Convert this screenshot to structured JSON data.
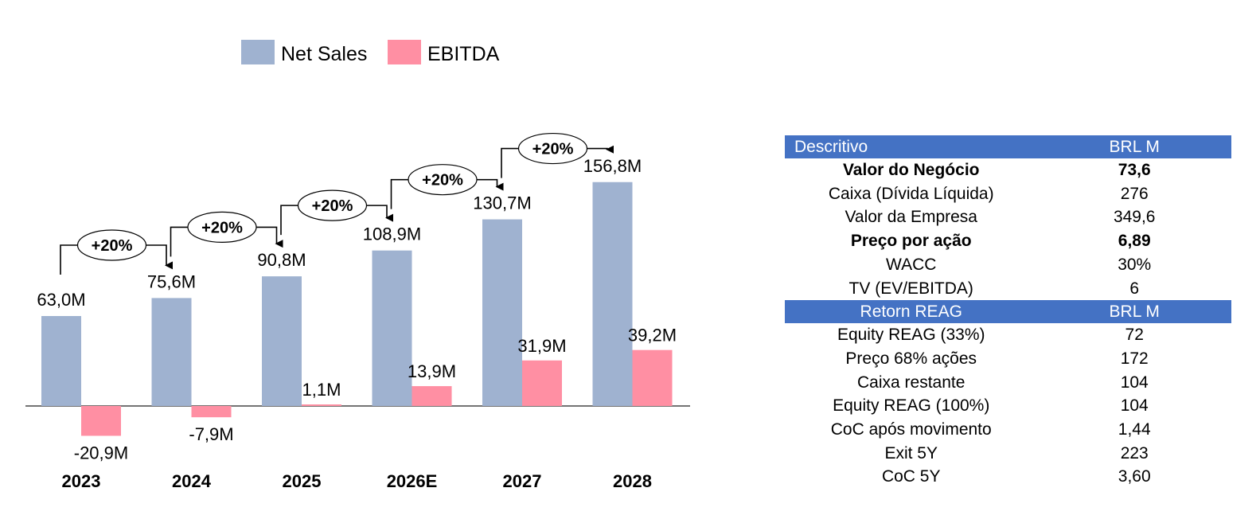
{
  "legend": [
    {
      "label": "Net Sales",
      "color": "#9fb2d0"
    },
    {
      "label": "EBITDA",
      "color": "#ff8fa3"
    }
  ],
  "chart_data": {
    "type": "bar",
    "categories": [
      "2023",
      "2024",
      "2025",
      "2026E",
      "2027",
      "2028"
    ],
    "series": [
      {
        "name": "Net Sales",
        "color": "#9fb2d0",
        "values": [
          63.0,
          75.6,
          90.8,
          108.9,
          130.7,
          156.8
        ],
        "labels": [
          "63,0M",
          "75,6M",
          "90,8M",
          "108,9M",
          "130,7M",
          "156,8M"
        ]
      },
      {
        "name": "EBITDA",
        "color": "#ff8fa3",
        "values": [
          -20.9,
          -7.9,
          1.1,
          13.9,
          31.9,
          39.2
        ],
        "labels": [
          "-20,9M",
          "-7,9M",
          "1,1M",
          "13,9M",
          "31,9M",
          "39,2M"
        ]
      }
    ],
    "growth_annotations": [
      "+20%",
      "+20%",
      "+20%",
      "+20%",
      "+20%"
    ],
    "ylim": [
      -25,
      170
    ],
    "grid": false,
    "legend_position": "top-center",
    "title": "",
    "xlabel": "",
    "ylabel": ""
  },
  "table": {
    "sections": [
      {
        "header": [
          "Descritivo",
          "BRL M"
        ],
        "header_align": "left",
        "rows": [
          {
            "label": "Valor do Negócio",
            "value": "73,6",
            "bold": true
          },
          {
            "label": "Caixa (Dívida Líquida)",
            "value": "276",
            "bold": false
          },
          {
            "label": "Valor da Empresa",
            "value": "349,6",
            "bold": false
          },
          {
            "label": "Preço por ação",
            "value": "6,89",
            "bold": true
          },
          {
            "label": "WACC",
            "value": "30%",
            "bold": false
          },
          {
            "label": "TV (EV/EBITDA)",
            "value": "6",
            "bold": false
          }
        ]
      },
      {
        "header": [
          "Retorn REAG",
          "BRL M"
        ],
        "header_align": "center",
        "rows": [
          {
            "label": "Equity REAG (33%)",
            "value": "72",
            "bold": false
          },
          {
            "label": "Preço 68% ações",
            "value": "172",
            "bold": false
          },
          {
            "label": "Caixa restante",
            "value": "104",
            "bold": false
          },
          {
            "label": "Equity REAG (100%)",
            "value": "104",
            "bold": false
          },
          {
            "label": "CoC após movimento",
            "value": "1,44",
            "bold": false
          },
          {
            "label": "Exit 5Y",
            "value": "223",
            "bold": false
          },
          {
            "label": "CoC 5Y",
            "value": "3,60",
            "bold": false
          }
        ]
      }
    ]
  }
}
